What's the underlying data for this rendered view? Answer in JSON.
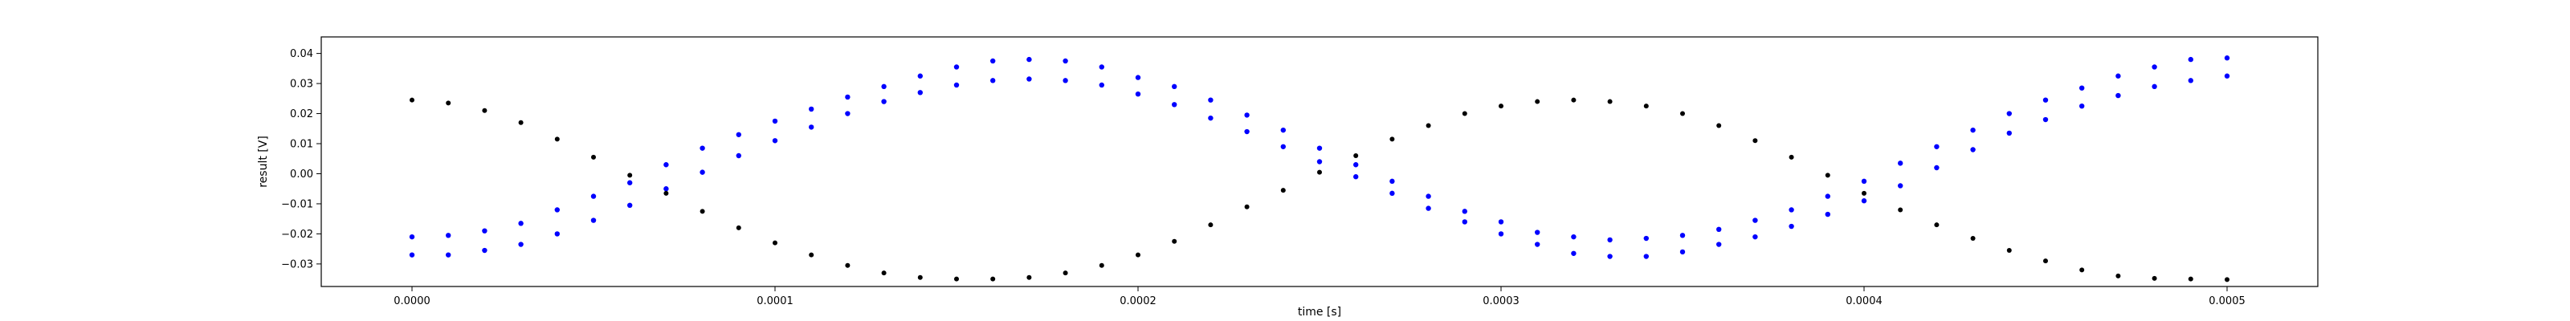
{
  "chart_data": {
    "type": "scatter",
    "xlabel": "time [s]",
    "ylabel": "result [V]",
    "xlim": [
      -2.5e-05,
      0.000525
    ],
    "ylim": [
      -0.0375,
      0.0455
    ],
    "xticks": [
      {
        "value": 0.0,
        "label": "0.0000"
      },
      {
        "value": 0.0001,
        "label": "0.0001"
      },
      {
        "value": 0.0002,
        "label": "0.0002"
      },
      {
        "value": 0.0003,
        "label": "0.0003"
      },
      {
        "value": 0.0004,
        "label": "0.0004"
      },
      {
        "value": 0.0005,
        "label": "0.0005"
      }
    ],
    "yticks": [
      {
        "value": 0.04,
        "label": "0.04"
      },
      {
        "value": 0.03,
        "label": "0.03"
      },
      {
        "value": 0.02,
        "label": "0.02"
      },
      {
        "value": 0.01,
        "label": "0.01"
      },
      {
        "value": 0.0,
        "label": "0.00"
      },
      {
        "value": -0.01,
        "label": "−0.01"
      },
      {
        "value": -0.02,
        "label": "−0.02"
      },
      {
        "value": -0.03,
        "label": "−0.03"
      }
    ],
    "grid": false,
    "series": [
      {
        "color": "#0000ff",
        "marker": "dot",
        "x": [
          0.0,
          1e-05,
          2e-05,
          3e-05,
          4e-05,
          5e-05,
          6e-05,
          7e-05,
          8e-05,
          9e-05,
          0.0001,
          0.00011,
          0.00012,
          0.00013,
          0.00014,
          0.00015,
          0.00016,
          0.00017,
          0.00018,
          0.00019,
          0.0002,
          0.00021,
          0.00022,
          0.00023,
          0.00024,
          0.00025,
          0.00026,
          0.00027,
          0.00028,
          0.00029,
          0.0003,
          0.00031,
          0.00032,
          0.00033,
          0.00034,
          0.00035,
          0.00036,
          0.00037,
          0.00038,
          0.00039,
          0.0004,
          0.00041,
          0.00042,
          0.00043,
          0.00044,
          0.00045,
          0.00046,
          0.00047,
          0.00048,
          0.00049,
          0.0005
        ],
        "y": [
          -0.021,
          -0.0205,
          -0.019,
          -0.0165,
          -0.012,
          -0.0075,
          -0.003,
          0.003,
          0.0085,
          0.013,
          0.0175,
          0.0215,
          0.0255,
          0.029,
          0.0325,
          0.0355,
          0.0375,
          0.038,
          0.0375,
          0.0355,
          0.032,
          0.029,
          0.0245,
          0.0195,
          0.0145,
          0.0085,
          0.003,
          -0.0025,
          -0.0075,
          -0.0125,
          -0.016,
          -0.0195,
          -0.021,
          -0.022,
          -0.0215,
          -0.0205,
          -0.0185,
          -0.0155,
          -0.012,
          -0.0075,
          -0.0025,
          0.0035,
          0.009,
          0.0145,
          0.02,
          0.0245,
          0.0285,
          0.0325,
          0.0355,
          0.038,
          0.0385
        ]
      },
      {
        "color": "#0000ff",
        "marker": "dot",
        "x": [
          0.0,
          1e-05,
          2e-05,
          3e-05,
          4e-05,
          5e-05,
          6e-05,
          7e-05,
          8e-05,
          9e-05,
          0.0001,
          0.00011,
          0.00012,
          0.00013,
          0.00014,
          0.00015,
          0.00016,
          0.00017,
          0.00018,
          0.00019,
          0.0002,
          0.00021,
          0.00022,
          0.00023,
          0.00024,
          0.00025,
          0.00026,
          0.00027,
          0.00028,
          0.00029,
          0.0003,
          0.00031,
          0.00032,
          0.00033,
          0.00034,
          0.00035,
          0.00036,
          0.00037,
          0.00038,
          0.00039,
          0.0004,
          0.00041,
          0.00042,
          0.00043,
          0.00044,
          0.00045,
          0.00046,
          0.00047,
          0.00048,
          0.00049,
          0.0005
        ],
        "y": [
          -0.027,
          -0.027,
          -0.0255,
          -0.0235,
          -0.02,
          -0.0155,
          -0.0105,
          -0.005,
          0.0005,
          0.006,
          0.011,
          0.0155,
          0.02,
          0.024,
          0.027,
          0.0295,
          0.031,
          0.0315,
          0.031,
          0.0295,
          0.0265,
          0.023,
          0.0185,
          0.014,
          0.009,
          0.004,
          -0.001,
          -0.0065,
          -0.0115,
          -0.016,
          -0.02,
          -0.0235,
          -0.0265,
          -0.0275,
          -0.0275,
          -0.026,
          -0.0235,
          -0.021,
          -0.0175,
          -0.0135,
          -0.009,
          -0.004,
          0.002,
          0.008,
          0.0135,
          0.018,
          0.0225,
          0.026,
          0.029,
          0.031,
          0.0325
        ]
      },
      {
        "color": "#000000",
        "marker": "dot",
        "x": [
          0.0,
          1e-05,
          2e-05,
          3e-05,
          4e-05,
          5e-05,
          6e-05,
          7e-05,
          8e-05,
          9e-05,
          0.0001,
          0.00011,
          0.00012,
          0.00013,
          0.00014,
          0.00015,
          0.00016,
          0.00017,
          0.00018,
          0.00019,
          0.0002,
          0.00021,
          0.00022,
          0.00023,
          0.00024,
          0.00025,
          0.00026,
          0.00027,
          0.00028,
          0.00029,
          0.0003,
          0.00031,
          0.00032,
          0.00033,
          0.00034,
          0.00035,
          0.00036,
          0.00037,
          0.00038,
          0.00039,
          0.0004,
          0.00041,
          0.00042,
          0.00043,
          0.00044,
          0.00045,
          0.00046,
          0.00047,
          0.00048,
          0.00049,
          0.0005
        ],
        "y": [
          0.0245,
          0.0235,
          0.021,
          0.017,
          0.0115,
          0.0055,
          -0.0005,
          -0.0065,
          -0.0125,
          -0.018,
          -0.023,
          -0.027,
          -0.0305,
          -0.033,
          -0.0345,
          -0.035,
          -0.035,
          -0.0345,
          -0.033,
          -0.0305,
          -0.027,
          -0.0225,
          -0.017,
          -0.011,
          -0.0055,
          0.0005,
          0.006,
          0.0115,
          0.016,
          0.02,
          0.0225,
          0.024,
          0.0245,
          0.024,
          0.0225,
          0.02,
          0.016,
          0.011,
          0.0055,
          -0.0005,
          -0.0065,
          -0.012,
          -0.017,
          -0.0215,
          -0.0255,
          -0.029,
          -0.032,
          -0.034,
          -0.0348,
          -0.035,
          -0.0352
        ]
      }
    ]
  }
}
